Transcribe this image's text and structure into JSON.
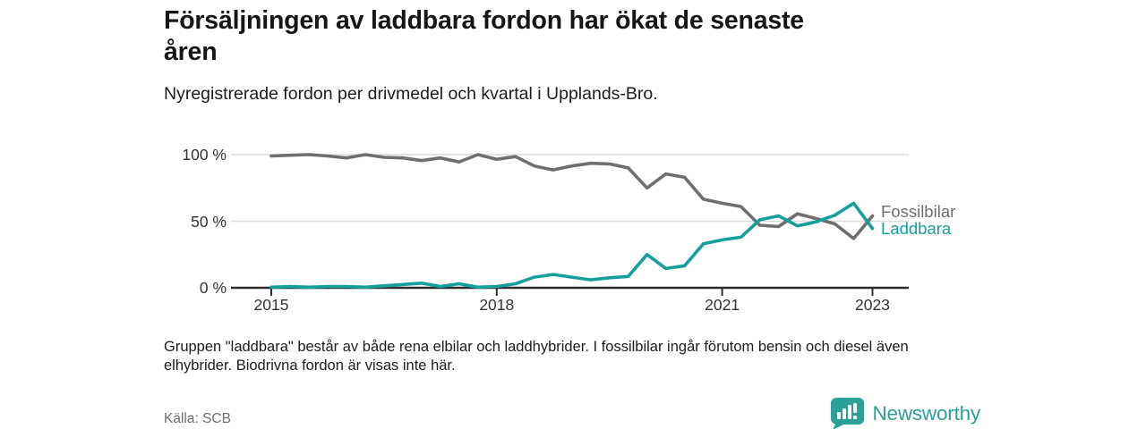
{
  "header": {
    "title_lines": [
      "Försäljningen av laddbara fordon har ökat de senaste",
      "åren"
    ],
    "subtitle": "Nyregistrerade fordon per drivmedel och kvartal i Upplands-Bro."
  },
  "chart_data": {
    "type": "line",
    "title": "Försäljningen av laddbara fordon har ökat de senaste åren",
    "subtitle": "Nyregistrerade fordon per drivmedel och kvartal i Upplands-Bro.",
    "x_quarters": [
      "2015Q1",
      "2015Q2",
      "2015Q3",
      "2015Q4",
      "2016Q1",
      "2016Q2",
      "2016Q3",
      "2016Q4",
      "2017Q1",
      "2017Q2",
      "2017Q3",
      "2017Q4",
      "2018Q1",
      "2018Q2",
      "2018Q3",
      "2018Q4",
      "2019Q1",
      "2019Q2",
      "2019Q3",
      "2019Q4",
      "2020Q1",
      "2020Q2",
      "2020Q3",
      "2020Q4",
      "2021Q1",
      "2021Q2",
      "2021Q3",
      "2021Q4",
      "2022Q1",
      "2022Q2",
      "2022Q3",
      "2022Q4",
      "2023Q1"
    ],
    "series": [
      {
        "name": "Fossilbilar",
        "color": "#6f6f6f",
        "values": [
          99,
          99.5,
          100,
          99,
          97.5,
          100,
          98,
          97.5,
          95.5,
          97.5,
          94.5,
          100,
          96.5,
          98.5,
          91.5,
          88.5,
          91.5,
          93.5,
          93,
          90,
          75,
          85.5,
          83,
          66.5,
          63.5,
          61,
          47,
          46,
          55.5,
          52,
          48,
          37,
          54
        ]
      },
      {
        "name": "Laddbara",
        "color": "#15a09a",
        "values": [
          0.5,
          1,
          0.5,
          1,
          1,
          0.5,
          1.5,
          2.5,
          3.5,
          1,
          3,
          0.5,
          1,
          3,
          8,
          10,
          8,
          6,
          7.5,
          8.5,
          25,
          14.5,
          16.5,
          33,
          36,
          38,
          51,
          54,
          46.5,
          49.5,
          54.5,
          63.5,
          44.5
        ]
      }
    ],
    "ylim": [
      0,
      100
    ],
    "y_ticks": [
      {
        "value": 0,
        "label": "0 %"
      },
      {
        "value": 50,
        "label": "50 %"
      },
      {
        "value": 100,
        "label": "100 %"
      }
    ],
    "x_ticks": [
      {
        "year": 2015,
        "label": "2015"
      },
      {
        "year": 2018,
        "label": "2018"
      },
      {
        "year": 2021,
        "label": "2021"
      },
      {
        "year": 2023,
        "label": "2023"
      }
    ],
    "grid": "horizontal",
    "legend_position": "line-end-labels"
  },
  "footer": {
    "note_lines": [
      "Gruppen \"laddbara\" består av både rena elbilar och laddhybrider. I fossilbilar ingår förutom bensin och diesel även",
      "elhybrider. Biodrivna fordon är visas inte här."
    ],
    "source": "Källa: SCB",
    "brand": "Newsworthy"
  },
  "colors": {
    "fossil_line": "#6f6f6f",
    "laddbara_line": "#15a09a",
    "axis": "#2e2e2e",
    "gridline": "#dcdcdc",
    "brand_teal": "#2aa096"
  }
}
